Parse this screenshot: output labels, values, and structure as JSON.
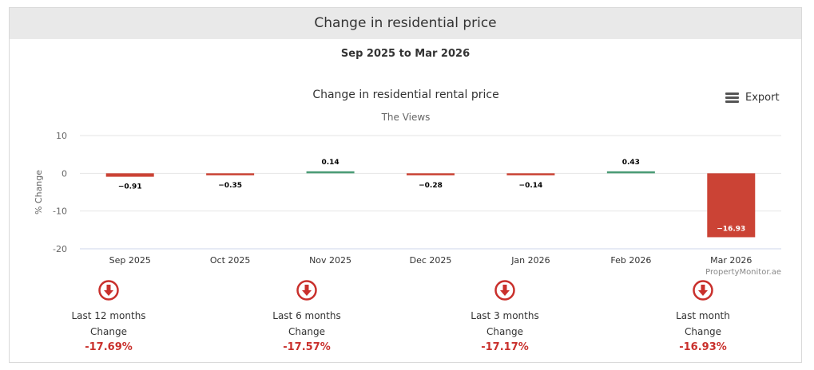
{
  "header": {
    "title": "Change in residential price"
  },
  "date_range": "Sep 2025 to Mar 2026",
  "export_label": "Export",
  "colors": {
    "negative": "#cb4335",
    "positive": "#4a9b75",
    "stat_red": "#c9302c"
  },
  "chart_data": {
    "type": "bar",
    "title": "Change in residential rental price",
    "subtitle": "The Views",
    "ylabel": "% Change",
    "xlabel": "",
    "ylim": [
      -20,
      10
    ],
    "yticks": [
      10,
      0,
      -10,
      -20
    ],
    "categories": [
      "Sep 2025",
      "Oct 2025",
      "Nov 2025",
      "Dec 2025",
      "Jan 2026",
      "Feb 2026",
      "Mar 2026"
    ],
    "values": [
      -0.91,
      -0.35,
      0.14,
      -0.28,
      -0.14,
      0.43,
      -16.93
    ],
    "data_labels": [
      "−0.91",
      "−0.35",
      "0.14",
      "−0.28",
      "−0.14",
      "0.43",
      "−16.93"
    ],
    "credit": "PropertyMonitor.ae"
  },
  "stats": [
    {
      "label": "Last 12 months",
      "sub": "Change",
      "value": "-17.69%",
      "icon": "down-arrow-icon"
    },
    {
      "label": "Last 6 months",
      "sub": "Change",
      "value": "-17.57%",
      "icon": "down-arrow-icon"
    },
    {
      "label": "Last 3 months",
      "sub": "Change",
      "value": "-17.17%",
      "icon": "down-arrow-icon"
    },
    {
      "label": "Last month",
      "sub": "Change",
      "value": "-16.93%",
      "icon": "down-arrow-icon"
    }
  ]
}
